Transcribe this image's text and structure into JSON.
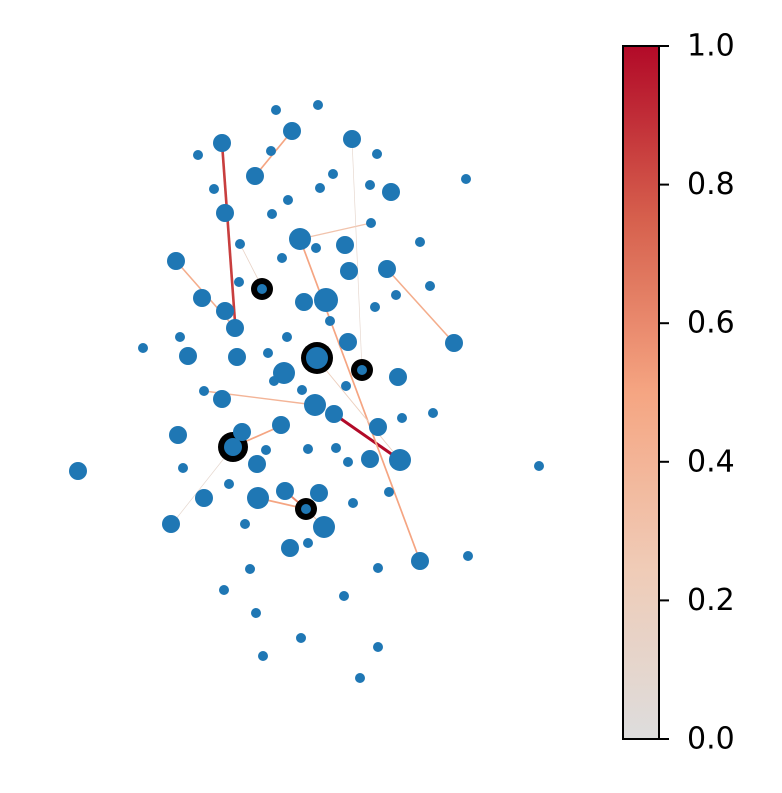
{
  "chart_data": {
    "type": "network",
    "edges": {
      "weights": [
        0.85,
        0.5,
        1.0,
        0.5,
        0.45,
        0.45,
        0.5,
        0.4,
        0.6,
        0.3,
        0.3,
        0.1,
        0.1,
        0.2,
        0.15,
        0.5
      ]
    },
    "colorbar": {
      "lim": [
        0,
        1
      ],
      "ticks": [
        {
          "value": 0,
          "label": "0.0"
        },
        {
          "value": 0.2,
          "label": "0.2"
        },
        {
          "value": 0.4,
          "label": "0.4"
        },
        {
          "value": 0.6,
          "label": "0.6"
        },
        {
          "value": 0.8,
          "label": "0.8"
        },
        {
          "value": 1,
          "label": "1.0"
        }
      ]
    },
    "node_color": "#1f77b4"
  }
}
